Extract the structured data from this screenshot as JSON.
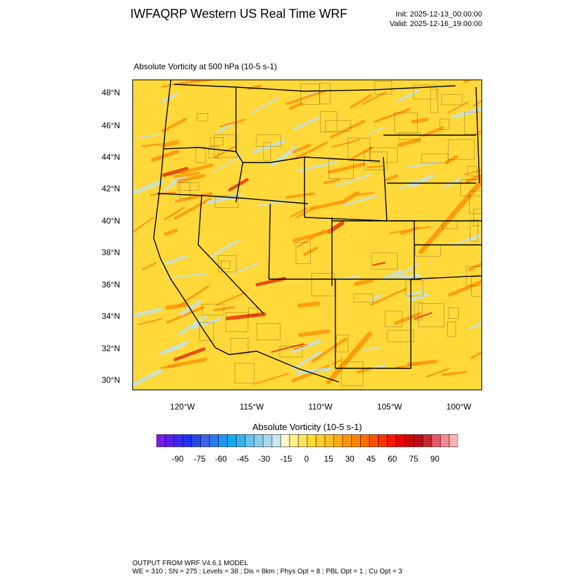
{
  "header": {
    "title": "IWFAQRP Western US Real Time WRF",
    "init": "Init: 2025-12-13_00:00:00",
    "valid": "Valid: 2025-12-16_19:00:00"
  },
  "map": {
    "field_label": "Absolute Vorticity at 500 hPa   (10-5 s-1)",
    "lat_ticks": [
      "48°N",
      "46°N",
      "44°N",
      "42°N",
      "40°N",
      "38°N",
      "36°N",
      "34°N",
      "32°N",
      "30°N"
    ],
    "lon_ticks": [
      "120°W",
      "115°W",
      "110°W",
      "105°W",
      "100°W"
    ],
    "colors": {
      "background": "#ffd83a",
      "positive_streak": "#ff8c00",
      "strong_positive": "#e02000",
      "negative": "#bfe3f5",
      "border": "#000000"
    }
  },
  "colorbar": {
    "title": "Absolute Vorticity  (10-5 s-1)",
    "labels": [
      "-90",
      "-75",
      "-60",
      "-45",
      "-30",
      "-15",
      "0",
      "15",
      "30",
      "45",
      "60",
      "75",
      "90"
    ],
    "colors": [
      "#7a1ee6",
      "#5a1ef0",
      "#3c28f5",
      "#1e32f5",
      "#2846e6",
      "#3c64e6",
      "#2d78f0",
      "#1e96f0",
      "#14aaeb",
      "#32b4eb",
      "#64c3eb",
      "#8ccdeb",
      "#aad7f0",
      "#c8e6f5",
      "#fffac8",
      "#fff08c",
      "#ffe65a",
      "#ffdc32",
      "#ffcd28",
      "#ffbe1e",
      "#ffaa14",
      "#ff960a",
      "#ff8200",
      "#ff6e00",
      "#ff5000",
      "#ff3200",
      "#ff1400",
      "#f00000",
      "#d20000",
      "#be0a14",
      "#c82832",
      "#e65a64",
      "#f08c96",
      "#ffb4b4"
    ]
  },
  "footer": {
    "line1": "OUTPUT FROM WRF V4.6.1 MODEL",
    "line2": "WE = 310 ; SN = 275 ; Levels = 38 ; Dis = 8km ; Phys Opt = 8 ; PBL Opt = 1 ; Cu Opt = 3"
  }
}
